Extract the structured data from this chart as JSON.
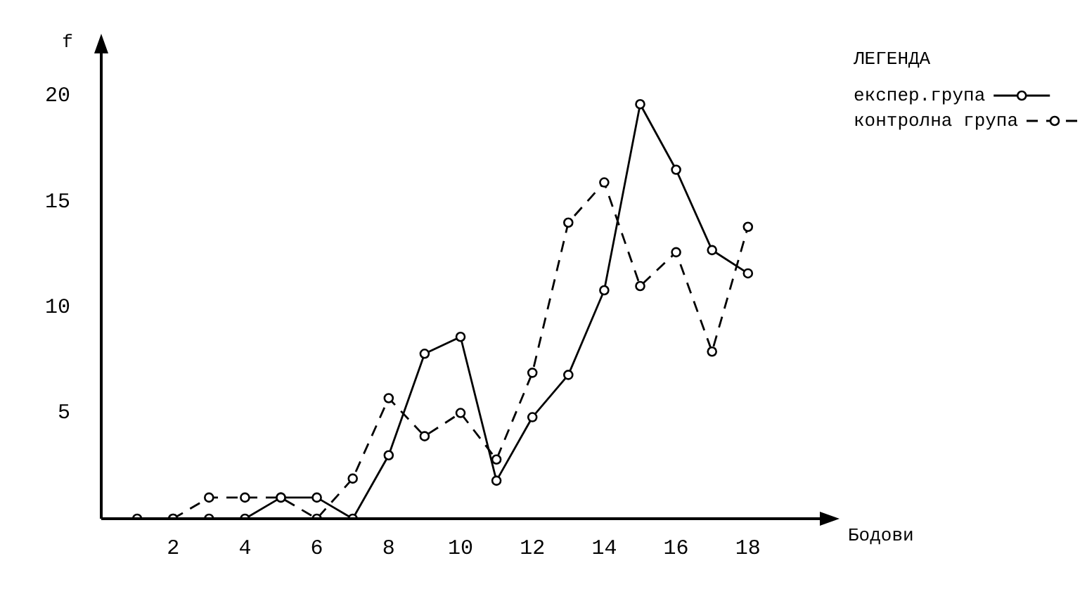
{
  "chart_data": {
    "type": "line",
    "xlabel": "Бодови",
    "ylabel": "f",
    "legend_title": "ЛЕГЕНДА",
    "legend": "top right",
    "grid": false,
    "marker": "circle",
    "xlim": [
      0,
      20
    ],
    "xticks": [
      2,
      4,
      6,
      8,
      10,
      12,
      14,
      16,
      18
    ],
    "ylim": [
      0,
      22
    ],
    "yticks": [
      5,
      10,
      15,
      20
    ],
    "series": [
      {
        "name": "експер.група",
        "color": "#000000",
        "line_style": "solid",
        "x": [
          1,
          2,
          3,
          4,
          5,
          6,
          7,
          8,
          9,
          10,
          11,
          12,
          13,
          14,
          15,
          16,
          17,
          18
        ],
        "values": [
          0,
          0,
          0,
          0,
          1,
          1,
          0,
          3,
          7.8,
          8.6,
          1.8,
          4.8,
          6.8,
          10.8,
          19.6,
          16.5,
          12.7,
          11.6
        ]
      },
      {
        "name": "контролна група",
        "color": "#000000",
        "line_style": "dashed",
        "x": [
          2,
          3,
          4,
          5,
          6,
          7,
          8,
          9,
          10,
          11,
          12,
          13,
          14,
          15,
          16,
          17,
          18
        ],
        "values": [
          0,
          1,
          1,
          1,
          0,
          1.9,
          5.7,
          3.9,
          5,
          2.8,
          6.9,
          14,
          15.9,
          11,
          12.6,
          7.9,
          13.8
        ]
      }
    ]
  }
}
